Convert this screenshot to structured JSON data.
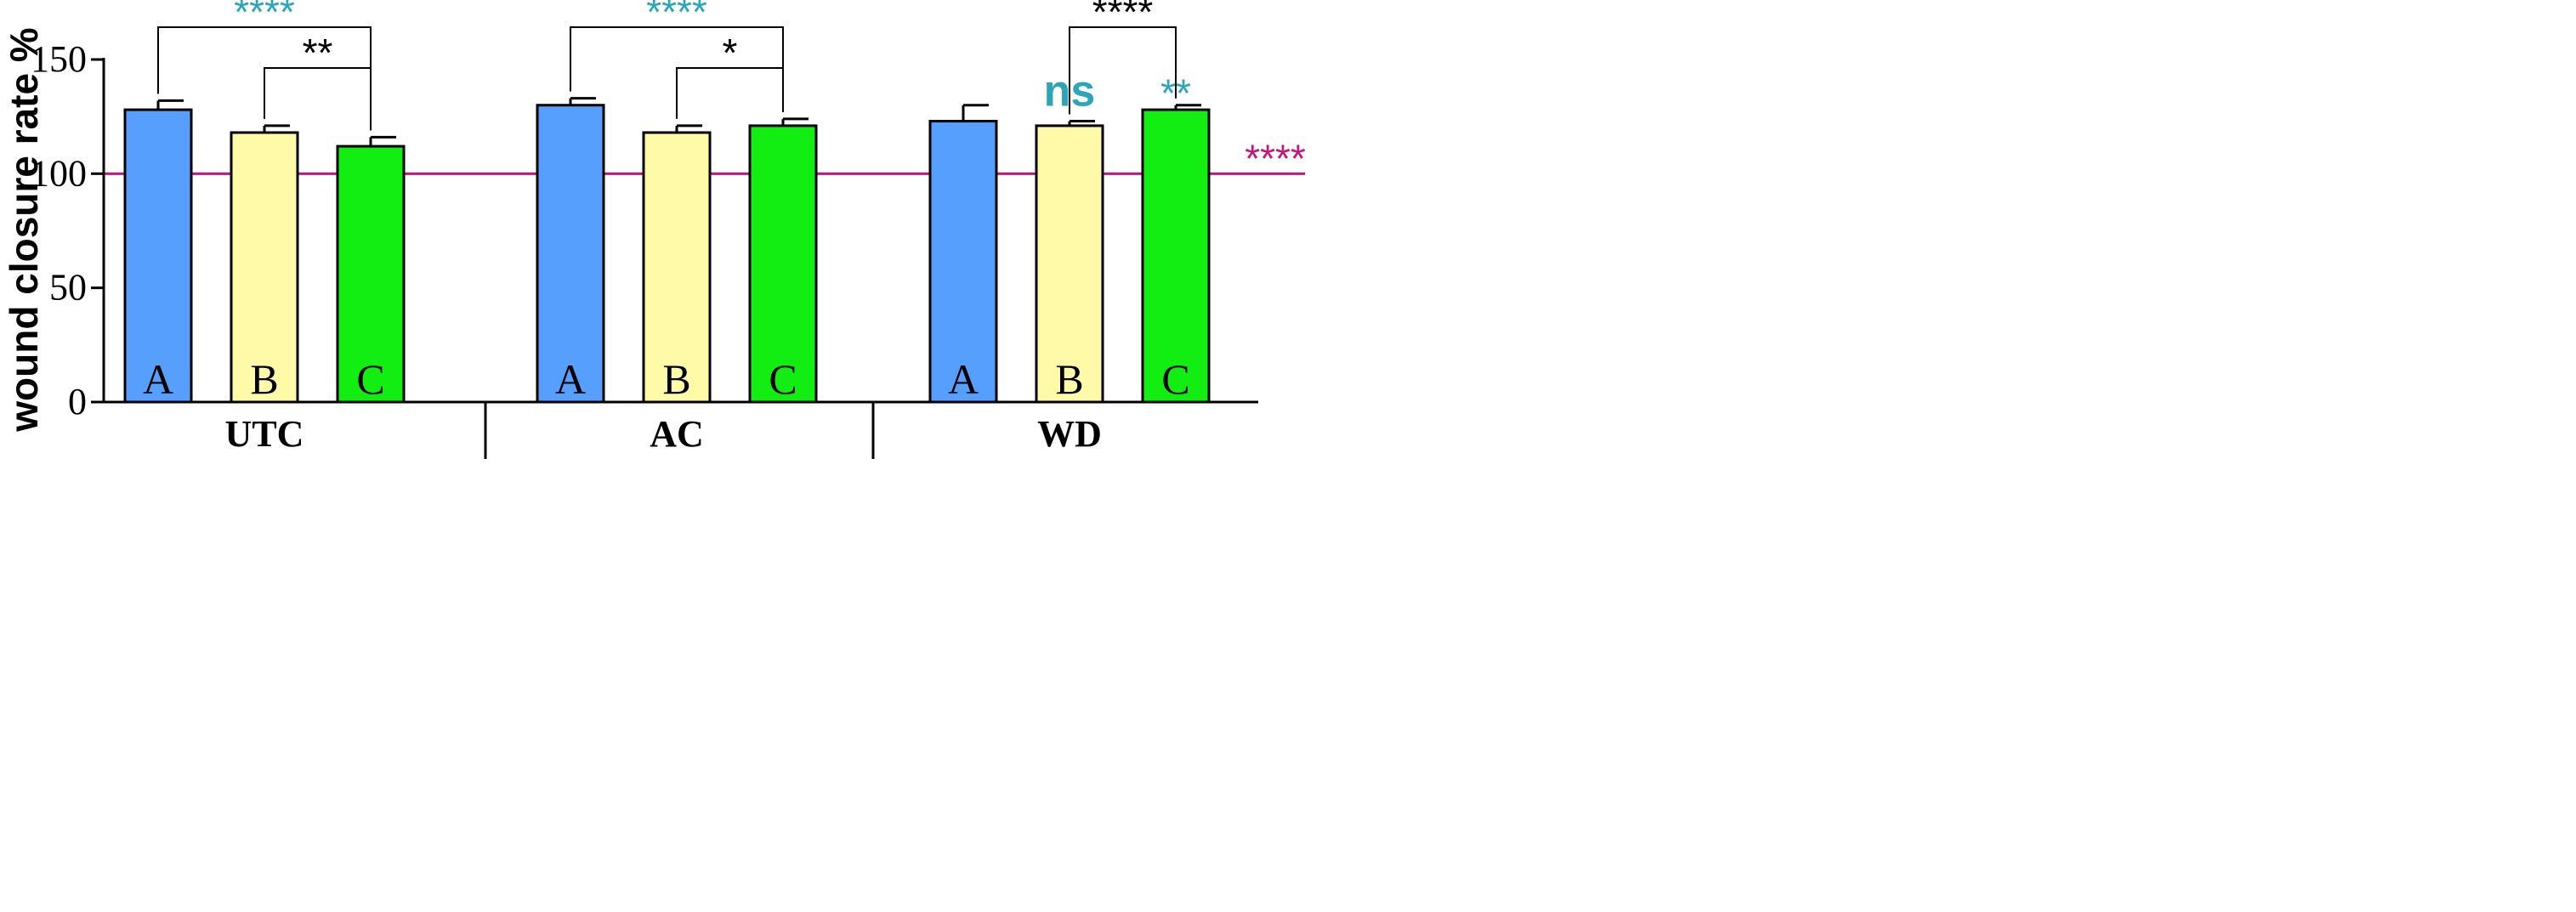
{
  "chart_data": {
    "type": "bar",
    "title": "",
    "xlabel": "",
    "ylabel": "wound closure rate %",
    "ylim": [
      0,
      150
    ],
    "yticks": [
      0,
      50,
      100,
      150
    ],
    "grid": false,
    "reference_line": {
      "value": 100,
      "color": "#c2187a",
      "label": "****"
    },
    "groups": [
      {
        "name": "UTC",
        "bars": [
          {
            "label": "A",
            "value": 128,
            "error": 4,
            "color": "#579ffd"
          },
          {
            "label": "B",
            "value": 118,
            "error": 3,
            "color": "#fefaa8"
          },
          {
            "label": "C",
            "value": 112,
            "error": 4,
            "color": "#12ee12"
          }
        ],
        "bar_annotations": [],
        "brackets": [
          {
            "from": 0,
            "to": 2,
            "label": "****",
            "color": "#2aa6b8",
            "level": 2
          },
          {
            "from": 1,
            "to": 2,
            "label": "**",
            "color": "#000000",
            "level": 1
          }
        ]
      },
      {
        "name": "AC",
        "bars": [
          {
            "label": "A",
            "value": 130,
            "error": 3,
            "color": "#579ffd"
          },
          {
            "label": "B",
            "value": 118,
            "error": 3,
            "color": "#fefaa8"
          },
          {
            "label": "C",
            "value": 121,
            "error": 3,
            "color": "#12ee12"
          }
        ],
        "bar_annotations": [],
        "brackets": [
          {
            "from": 0,
            "to": 2,
            "label": "****",
            "color": "#2aa6b8",
            "level": 2
          },
          {
            "from": 1,
            "to": 2,
            "label": "*",
            "color": "#000000",
            "level": 1
          }
        ]
      },
      {
        "name": "WD",
        "bars": [
          {
            "label": "A",
            "value": 123,
            "error": 7,
            "color": "#579ffd"
          },
          {
            "label": "B",
            "value": 121,
            "error": 2,
            "color": "#fefaa8"
          },
          {
            "label": "C",
            "value": 128,
            "error": 2,
            "color": "#12ee12"
          }
        ],
        "bar_annotations": [
          {
            "bar": 1,
            "label": "ns",
            "color": "#2aa6b8"
          },
          {
            "bar": 2,
            "label": "**",
            "color": "#2aa6b8"
          }
        ],
        "brackets": [
          {
            "from": 1,
            "to": 2,
            "label": "****",
            "color": "#000000",
            "level": 2
          }
        ]
      }
    ]
  }
}
